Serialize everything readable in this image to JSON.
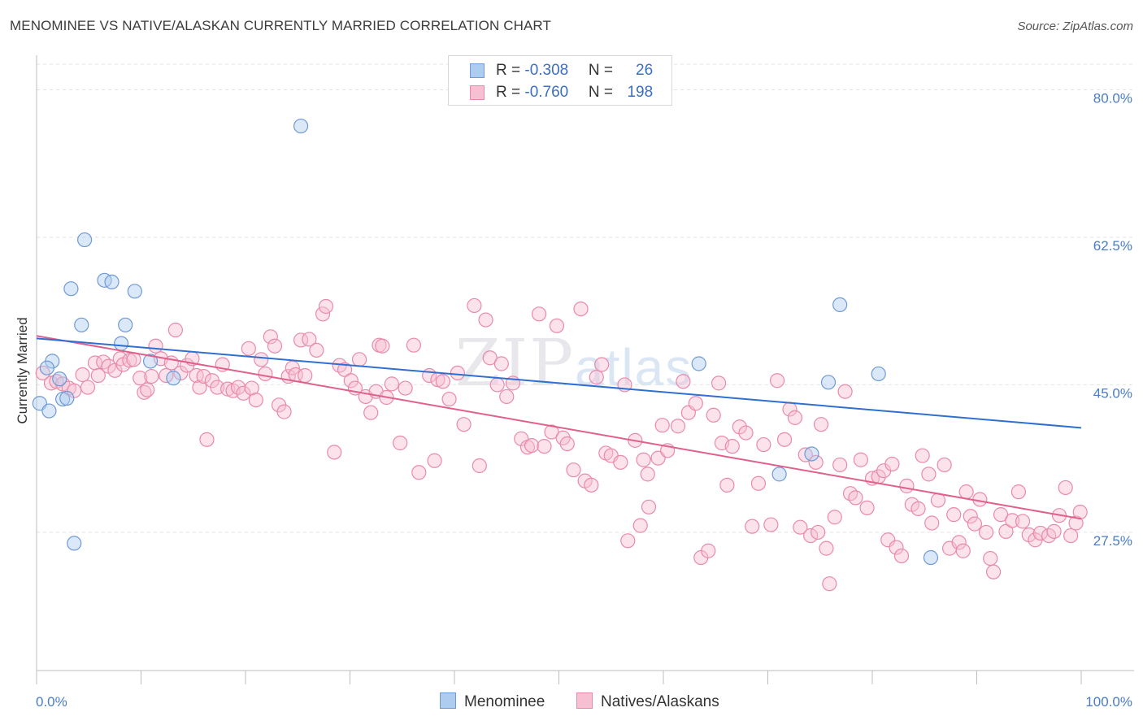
{
  "title": "MENOMINEE VS NATIVE/ALASKAN CURRENTLY MARRIED CORRELATION CHART",
  "source": "Source: ZipAtlas.com",
  "watermark": {
    "zip": "ZIP",
    "atlas": "atlas"
  },
  "legend": {
    "rows": [
      {
        "r_label": "R = ",
        "r_value": "-0.308",
        "n_label": "N = ",
        "n_value": "26"
      },
      {
        "r_label": "R = ",
        "r_value": "-0.760",
        "n_label": "N = ",
        "n_value": "198"
      }
    ]
  },
  "bottom_legend": {
    "menominee": "Menominee",
    "natives": "Natives/Alaskans"
  },
  "colors": {
    "blue_fill": "#aecbf0",
    "blue_stroke": "#6f9ad6",
    "blue_line": "#2f6fd0",
    "pink_fill": "#f7bfd2",
    "pink_stroke": "#e98aaa",
    "pink_line": "#e0608c",
    "tick_label": "#4a7cc9",
    "grid": "#e2e2e2"
  },
  "chart_data": {
    "type": "scatter",
    "title": "MENOMINEE VS NATIVE/ALASKAN CURRENTLY MARRIED CORRELATION CHART",
    "xlabel": "",
    "ylabel": "Currently Married",
    "xlim": [
      0,
      100
    ],
    "ylim": [
      11.1,
      83.9
    ],
    "x_tick_labels": [
      "0.0%",
      "100.0%"
    ],
    "y_ticks": [
      27.5,
      45.0,
      62.5,
      80.0
    ],
    "y_tick_labels": [
      "27.5%",
      "45.0%",
      "62.5%",
      "80.0%"
    ],
    "grid": "horizontal dashed",
    "series": [
      {
        "name": "Menominee",
        "r": -0.308,
        "n": 26,
        "trend": {
          "x": [
            0,
            100
          ],
          "y": [
            50.5,
            39.9
          ]
        },
        "points": [
          [
            0.3,
            42.8
          ],
          [
            1.2,
            41.9
          ],
          [
            1.5,
            47.8
          ],
          [
            2.2,
            45.7
          ],
          [
            2.5,
            43.3
          ],
          [
            2.9,
            43.4
          ],
          [
            3.3,
            56.4
          ],
          [
            3.6,
            26.2
          ],
          [
            4.3,
            52.1
          ],
          [
            4.6,
            62.2
          ],
          [
            6.5,
            57.4
          ],
          [
            7.2,
            57.2
          ],
          [
            8.1,
            49.9
          ],
          [
            8.5,
            52.1
          ],
          [
            9.4,
            56.1
          ],
          [
            10.9,
            47.8
          ],
          [
            13.1,
            45.8
          ],
          [
            25.3,
            75.7
          ],
          [
            63.4,
            47.5
          ],
          [
            71.1,
            34.4
          ],
          [
            74.2,
            36.8
          ],
          [
            75.8,
            45.3
          ],
          [
            76.9,
            54.5
          ],
          [
            80.6,
            46.3
          ],
          [
            85.6,
            24.5
          ],
          [
            1.0,
            47.0
          ]
        ]
      },
      {
        "name": "Natives/Alaskans",
        "r": -0.76,
        "n": 198,
        "trend": {
          "x": [
            0,
            100
          ],
          "y": [
            50.8,
            29.1
          ]
        },
        "points": [
          [
            0.6,
            46.4
          ],
          [
            1.4,
            45.2
          ],
          [
            1.9,
            45.4
          ],
          [
            2.5,
            45.1
          ],
          [
            3.1,
            44.6
          ],
          [
            3.6,
            44.3
          ],
          [
            4.4,
            46.2
          ],
          [
            4.9,
            44.7
          ],
          [
            5.6,
            47.6
          ],
          [
            5.9,
            46.1
          ],
          [
            6.4,
            47.7
          ],
          [
            6.9,
            47.2
          ],
          [
            7.5,
            46.7
          ],
          [
            8.0,
            48.1
          ],
          [
            8.3,
            47.4
          ],
          [
            8.9,
            47.9
          ],
          [
            9.3,
            48.0
          ],
          [
            9.9,
            45.8
          ],
          [
            10.3,
            44.1
          ],
          [
            10.6,
            44.4
          ],
          [
            11.0,
            46.0
          ],
          [
            11.4,
            49.6
          ],
          [
            11.9,
            48.1
          ],
          [
            12.4,
            46.1
          ],
          [
            12.9,
            47.6
          ],
          [
            13.3,
            51.5
          ],
          [
            13.8,
            46.4
          ],
          [
            14.4,
            47.3
          ],
          [
            14.9,
            48.1
          ],
          [
            15.3,
            46.1
          ],
          [
            15.6,
            44.7
          ],
          [
            16.0,
            46.0
          ],
          [
            16.3,
            38.5
          ],
          [
            16.8,
            45.5
          ],
          [
            17.3,
            44.7
          ],
          [
            17.8,
            47.4
          ],
          [
            18.3,
            44.5
          ],
          [
            18.8,
            44.3
          ],
          [
            19.3,
            44.7
          ],
          [
            19.8,
            44.0
          ],
          [
            20.3,
            49.3
          ],
          [
            20.6,
            44.6
          ],
          [
            21.0,
            43.2
          ],
          [
            21.5,
            48.0
          ],
          [
            21.9,
            46.3
          ],
          [
            22.4,
            50.7
          ],
          [
            22.8,
            49.6
          ],
          [
            23.2,
            42.6
          ],
          [
            23.7,
            41.8
          ],
          [
            24.1,
            46.0
          ],
          [
            24.5,
            47.0
          ],
          [
            24.8,
            46.2
          ],
          [
            25.3,
            50.3
          ],
          [
            25.7,
            46.1
          ],
          [
            26.1,
            50.4
          ],
          [
            26.8,
            49.1
          ],
          [
            27.4,
            53.4
          ],
          [
            27.7,
            54.3
          ],
          [
            28.5,
            37.0
          ],
          [
            29.0,
            47.3
          ],
          [
            29.5,
            46.8
          ],
          [
            30.1,
            45.5
          ],
          [
            30.5,
            44.6
          ],
          [
            30.9,
            48.0
          ],
          [
            31.5,
            43.6
          ],
          [
            32.0,
            41.7
          ],
          [
            32.5,
            44.2
          ],
          [
            32.8,
            49.7
          ],
          [
            33.1,
            49.6
          ],
          [
            33.5,
            43.5
          ],
          [
            34.0,
            45.1
          ],
          [
            34.8,
            38.1
          ],
          [
            35.3,
            44.6
          ],
          [
            36.1,
            49.7
          ],
          [
            36.6,
            34.6
          ],
          [
            37.6,
            46.1
          ],
          [
            38.1,
            36.0
          ],
          [
            38.4,
            45.6
          ],
          [
            38.9,
            45.4
          ],
          [
            39.5,
            43.3
          ],
          [
            40.3,
            46.4
          ],
          [
            40.9,
            40.3
          ],
          [
            41.9,
            54.4
          ],
          [
            42.4,
            35.4
          ],
          [
            43.0,
            52.7
          ],
          [
            43.4,
            48.2
          ],
          [
            44.1,
            45.0
          ],
          [
            44.5,
            47.5
          ],
          [
            45.0,
            43.6
          ],
          [
            45.6,
            45.2
          ],
          [
            46.4,
            38.6
          ],
          [
            47.0,
            37.6
          ],
          [
            47.4,
            37.8
          ],
          [
            48.1,
            53.4
          ],
          [
            48.6,
            37.7
          ],
          [
            49.3,
            39.4
          ],
          [
            49.8,
            52.0
          ],
          [
            50.4,
            38.7
          ],
          [
            50.8,
            38.0
          ],
          [
            51.4,
            34.9
          ],
          [
            52.1,
            54.0
          ],
          [
            52.5,
            33.6
          ],
          [
            53.1,
            33.1
          ],
          [
            53.6,
            45.9
          ],
          [
            54.1,
            47.4
          ],
          [
            54.5,
            36.9
          ],
          [
            55.0,
            36.6
          ],
          [
            55.9,
            35.8
          ],
          [
            56.3,
            45.0
          ],
          [
            56.6,
            26.5
          ],
          [
            57.3,
            38.4
          ],
          [
            57.8,
            28.3
          ],
          [
            58.1,
            36.1
          ],
          [
            58.6,
            30.5
          ],
          [
            59.5,
            36.3
          ],
          [
            59.9,
            40.2
          ],
          [
            60.4,
            37.2
          ],
          [
            61.4,
            40.1
          ],
          [
            61.9,
            45.4
          ],
          [
            62.4,
            41.7
          ],
          [
            63.1,
            42.8
          ],
          [
            63.6,
            24.5
          ],
          [
            64.3,
            25.3
          ],
          [
            64.8,
            41.4
          ],
          [
            65.6,
            38.1
          ],
          [
            66.1,
            33.1
          ],
          [
            66.6,
            37.7
          ],
          [
            67.3,
            40.0
          ],
          [
            67.9,
            39.3
          ],
          [
            68.5,
            28.2
          ],
          [
            69.1,
            33.3
          ],
          [
            69.6,
            37.9
          ],
          [
            70.3,
            28.4
          ],
          [
            70.9,
            45.5
          ],
          [
            71.6,
            38.5
          ],
          [
            72.1,
            42.1
          ],
          [
            72.6,
            41.1
          ],
          [
            73.1,
            28.1
          ],
          [
            73.6,
            36.7
          ],
          [
            74.1,
            27.1
          ],
          [
            74.6,
            35.8
          ],
          [
            74.8,
            27.5
          ],
          [
            75.1,
            40.3
          ],
          [
            75.6,
            25.6
          ],
          [
            75.9,
            21.4
          ],
          [
            76.4,
            29.3
          ],
          [
            76.9,
            35.5
          ],
          [
            77.4,
            44.2
          ],
          [
            77.9,
            32.1
          ],
          [
            78.4,
            31.6
          ],
          [
            78.9,
            36.1
          ],
          [
            79.5,
            30.4
          ],
          [
            80.0,
            33.9
          ],
          [
            80.6,
            34.1
          ],
          [
            81.1,
            34.8
          ],
          [
            81.5,
            26.6
          ],
          [
            81.9,
            35.6
          ],
          [
            82.3,
            25.7
          ],
          [
            82.8,
            24.7
          ],
          [
            83.3,
            33.0
          ],
          [
            83.8,
            30.8
          ],
          [
            84.4,
            30.3
          ],
          [
            84.8,
            36.6
          ],
          [
            85.4,
            34.4
          ],
          [
            85.7,
            28.6
          ],
          [
            86.3,
            31.3
          ],
          [
            86.9,
            35.5
          ],
          [
            87.4,
            25.6
          ],
          [
            87.8,
            29.6
          ],
          [
            88.3,
            26.3
          ],
          [
            88.7,
            25.3
          ],
          [
            89.0,
            32.3
          ],
          [
            89.4,
            29.4
          ],
          [
            89.8,
            28.5
          ],
          [
            90.3,
            31.4
          ],
          [
            90.9,
            27.5
          ],
          [
            91.3,
            24.4
          ],
          [
            91.6,
            22.8
          ],
          [
            92.3,
            29.6
          ],
          [
            92.8,
            27.6
          ],
          [
            93.4,
            28.9
          ],
          [
            94.0,
            32.3
          ],
          [
            94.4,
            28.8
          ],
          [
            95.0,
            27.2
          ],
          [
            95.6,
            26.6
          ],
          [
            96.1,
            27.4
          ],
          [
            96.9,
            27.1
          ],
          [
            97.4,
            27.6
          ],
          [
            97.9,
            29.5
          ],
          [
            98.5,
            32.8
          ],
          [
            99.0,
            27.1
          ],
          [
            99.5,
            28.6
          ],
          [
            99.9,
            29.9
          ],
          [
            58.5,
            34.4
          ],
          [
            65.3,
            45.2
          ]
        ]
      }
    ]
  }
}
